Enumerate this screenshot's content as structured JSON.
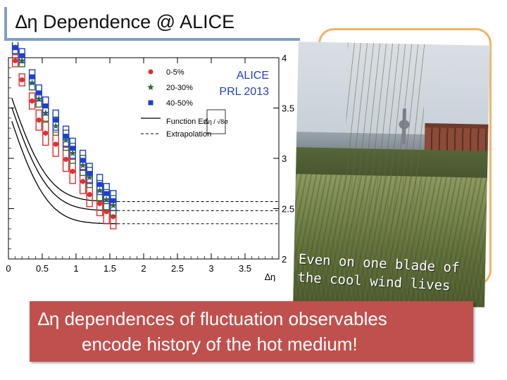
{
  "slide": {
    "title": "∆η Dependence @ ALICE",
    "photo_caption_line1": "Even on one blade of",
    "photo_caption_line2": "the cool wind lives",
    "banner_line1": "∆η dependences of fluctuation observables",
    "banner_line2": "encode history of the hot medium!"
  },
  "chart_data": {
    "type": "scatter",
    "xlabel": "∆η",
    "ylabel": "",
    "xlim": [
      0,
      4
    ],
    "ylim": [
      2,
      4
    ],
    "x_ticks": [
      "0",
      "0.5",
      "1",
      "1.5",
      "2",
      "2.5",
      "3",
      "3.5"
    ],
    "y_ticks": [
      "2",
      "2.5",
      "3",
      "3.5",
      "4"
    ],
    "annotation": [
      "ALICE",
      "PRL 2013"
    ],
    "legend": {
      "placement": "top-right",
      "entries": [
        "0-5%",
        "20-30%",
        "40-50%",
        "Function Erf",
        "Extrapolation"
      ],
      "formula": "∆η / √8σ"
    },
    "series": [
      {
        "name": "0-5%",
        "color": "#e03030",
        "marker": "circle",
        "x": [
          0.1,
          0.2,
          0.35,
          0.45,
          0.55,
          0.7,
          0.85,
          0.95,
          1.1,
          1.2,
          1.35,
          1.45,
          1.55
        ],
        "y": [
          3.97,
          3.78,
          3.57,
          3.38,
          3.25,
          3.14,
          2.99,
          2.87,
          2.77,
          2.64,
          2.55,
          2.47,
          2.42
        ],
        "sys": [
          0.06,
          0.06,
          0.08,
          0.1,
          0.12,
          0.12,
          0.12,
          0.12,
          0.12,
          0.12,
          0.12,
          0.12,
          0.12
        ]
      },
      {
        "name": "20-30%",
        "color": "#2e6e2e",
        "marker": "star",
        "x": [
          0.1,
          0.2,
          0.35,
          0.45,
          0.55,
          0.7,
          0.85,
          0.95,
          1.1,
          1.2,
          1.35,
          1.45,
          1.55
        ],
        "y": [
          4.14,
          3.97,
          3.75,
          3.59,
          3.45,
          3.32,
          3.18,
          3.05,
          2.93,
          2.81,
          2.68,
          2.59,
          2.53
        ],
        "sys": [
          0.06,
          0.06,
          0.07,
          0.08,
          0.09,
          0.09,
          0.1,
          0.1,
          0.1,
          0.1,
          0.1,
          0.1,
          0.1
        ]
      },
      {
        "name": "40-50%",
        "color": "#1f3fd0",
        "marker": "square",
        "x": [
          0.1,
          0.2,
          0.35,
          0.45,
          0.55,
          0.7,
          0.85,
          0.95,
          1.1,
          1.2,
          1.35,
          1.45,
          1.55
        ],
        "y": [
          4.19,
          4.02,
          3.81,
          3.65,
          3.52,
          3.38,
          3.22,
          3.1,
          2.98,
          2.85,
          2.74,
          2.65,
          2.58
        ],
        "sys": [
          0.06,
          0.07,
          0.07,
          0.08,
          0.09,
          0.1,
          0.1,
          0.1,
          0.1,
          0.1,
          0.1,
          0.1,
          0.1
        ]
      }
    ],
    "fit_curves": [
      {
        "plateau": 2.35,
        "amp": 2.5,
        "w": 1.3
      },
      {
        "plateau": 2.48,
        "amp": 2.5,
        "w": 1.32
      },
      {
        "plateau": 2.57,
        "amp": 2.5,
        "w": 1.33
      }
    ]
  }
}
